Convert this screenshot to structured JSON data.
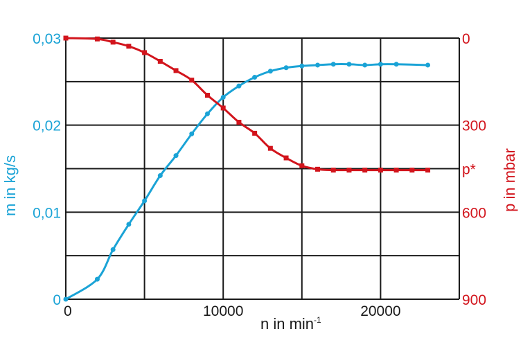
{
  "chart_data": {
    "type": "line",
    "title": "",
    "xlabel": "n in min",
    "xlabel_sup": "-1",
    "ylabel_left": "m in kg/s",
    "ylabel_right": "p in mbar",
    "xlim": [
      0,
      25000
    ],
    "ylim_left": [
      0,
      0.03
    ],
    "ylim_right": [
      900,
      0
    ],
    "grid": true,
    "x_ticks": [
      {
        "value": 0,
        "label": "0"
      },
      {
        "value": 10000,
        "label": "10000"
      },
      {
        "value": 20000,
        "label": "20000"
      }
    ],
    "y_left_ticks": [
      {
        "value": 0,
        "label": "0"
      },
      {
        "value": 0.01,
        "label": "0,01"
      },
      {
        "value": 0.02,
        "label": "0,02"
      },
      {
        "value": 0.03,
        "label": "0,03"
      }
    ],
    "y_right_ticks": [
      {
        "value": 0,
        "label": "0"
      },
      {
        "value": 300,
        "label": "300"
      },
      {
        "value": 450,
        "label": "p*"
      },
      {
        "value": 600,
        "label": "600"
      },
      {
        "value": 900,
        "label": "900"
      }
    ],
    "colors": {
      "left": "#1aa3d6",
      "right": "#d2141c",
      "grid": "#1a1a1a"
    },
    "series": [
      {
        "axis": "left",
        "x": [
          0,
          2000,
          3000,
          4000,
          5000,
          6000,
          7000,
          8000,
          9000,
          10000,
          11000,
          12000,
          13000,
          14000,
          15000,
          16000,
          17000,
          18000,
          19000,
          20000,
          21000,
          23000
        ],
        "values": [
          0,
          0.0023,
          0.0057,
          0.0086,
          0.0113,
          0.0142,
          0.0165,
          0.019,
          0.0213,
          0.0232,
          0.0245,
          0.0255,
          0.0262,
          0.0266,
          0.0268,
          0.0269,
          0.027,
          0.027,
          0.0269,
          0.027,
          0.027,
          0.0269
        ]
      },
      {
        "axis": "right",
        "x": [
          0,
          2000,
          3000,
          4000,
          5000,
          6000,
          7000,
          8000,
          9000,
          10000,
          11000,
          12000,
          13000,
          14000,
          15000,
          16000,
          17000,
          18000,
          19000,
          20000,
          21000,
          22000,
          23000
        ],
        "values": [
          0,
          3,
          14,
          28,
          50,
          80,
          112,
          145,
          197,
          241,
          290,
          328,
          380,
          413,
          440,
          452,
          455,
          455,
          455,
          455,
          455,
          455,
          455
        ]
      }
    ]
  }
}
